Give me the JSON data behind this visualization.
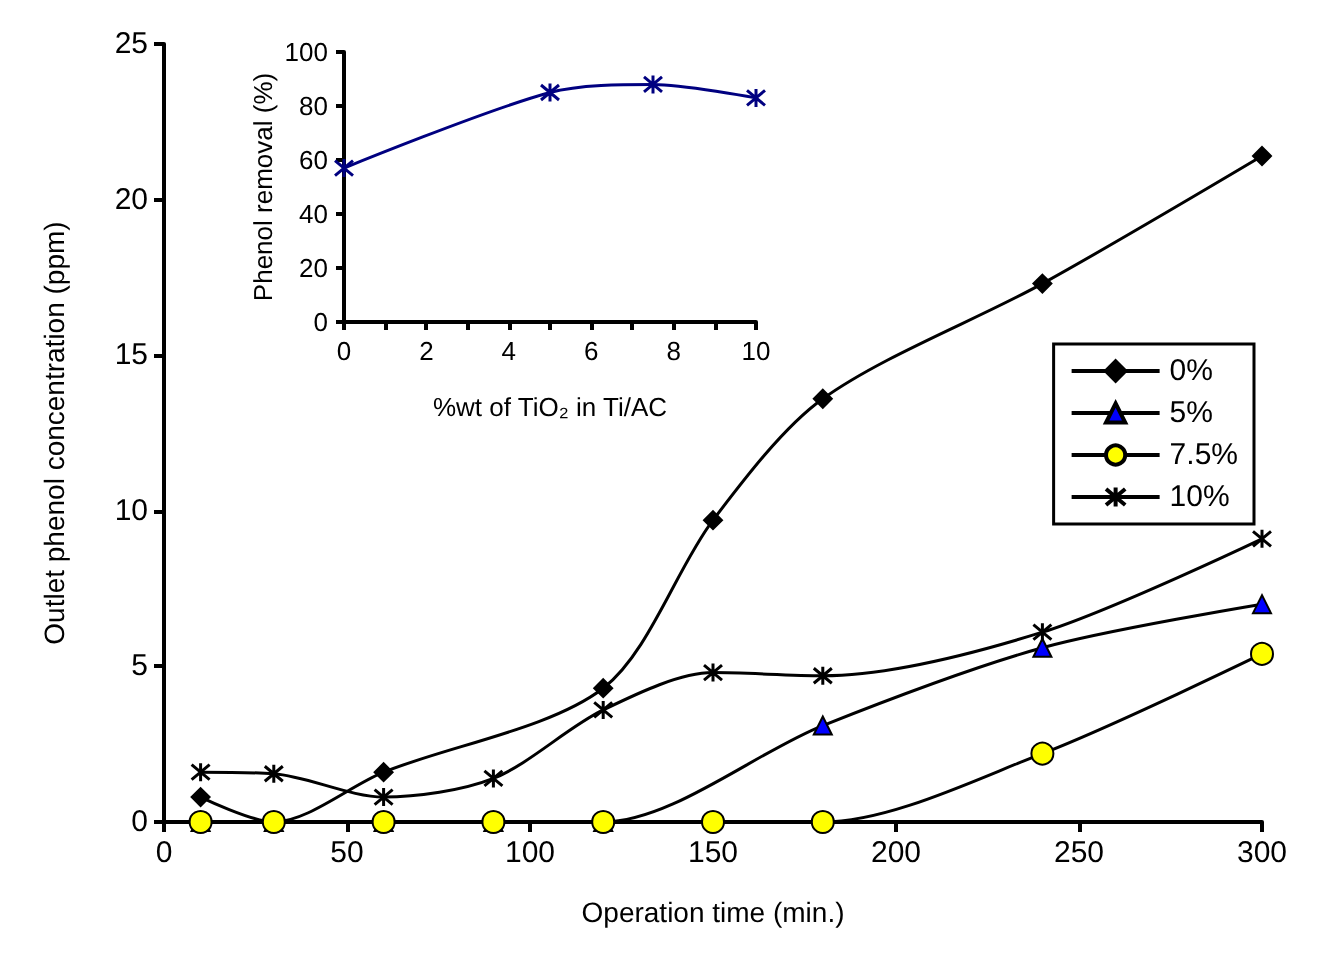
{
  "chart_data": [
    {
      "type": "line",
      "xlabel": "Operation time (min.)",
      "ylabel": "Outlet phenol concentration (ppm)",
      "xlim": [
        0,
        300
      ],
      "xticks": [
        0,
        50,
        100,
        150,
        200,
        250,
        300
      ],
      "ylim": [
        0,
        25
      ],
      "yticks": [
        0,
        5,
        10,
        15,
        20,
        25
      ],
      "grid": false,
      "legend": "right",
      "line_style": "solid",
      "series": [
        {
          "name": "0%",
          "color": "#000000",
          "marker": "diamond",
          "x": [
            10,
            30,
            60,
            120,
            150,
            180,
            240,
            300
          ],
          "values": [
            0.8,
            0,
            1.6,
            4.3,
            9.7,
            13.6,
            17.3,
            21.4
          ]
        },
        {
          "name": "5%",
          "color": "#0000ff",
          "marker": "triangle",
          "x": [
            10,
            30,
            60,
            90,
            120,
            180,
            240,
            300
          ],
          "values": [
            0,
            0,
            0,
            0,
            0,
            3.1,
            5.6,
            7.0
          ]
        },
        {
          "name": "7.5%",
          "color": "#ffff00",
          "marker": "circle",
          "x": [
            10,
            30,
            60,
            90,
            120,
            150,
            180,
            240,
            300
          ],
          "values": [
            0,
            0,
            0,
            0,
            0,
            0,
            0,
            2.2,
            5.4
          ]
        },
        {
          "name": "10%",
          "color": "#000000",
          "marker": "cross",
          "x": [
            10,
            30,
            60,
            90,
            120,
            150,
            180,
            240,
            300
          ],
          "values": [
            1.6,
            1.55,
            0.8,
            1.4,
            3.6,
            4.8,
            4.7,
            6.1,
            9.1
          ]
        }
      ]
    },
    {
      "type": "line",
      "xlabel": "%wt of TiO₂ in Ti/AC",
      "ylabel": "Phenol removal (%)",
      "xlim": [
        0,
        10
      ],
      "xticks": [
        0,
        {
          "value": 1,
          "label": null
        },
        2,
        {
          "value": 3,
          "label": null
        },
        4,
        {
          "value": 5,
          "label": null
        },
        6,
        {
          "value": 7,
          "label": null
        },
        8,
        {
          "value": 9,
          "label": null
        },
        10
      ],
      "ylim": [
        0,
        100
      ],
      "yticks": [
        0,
        20,
        40,
        60,
        80,
        100
      ],
      "grid": false,
      "legend": false,
      "marker": "cross",
      "line_style": "solid",
      "series": [
        {
          "color": "#000080",
          "x": [
            0,
            5,
            7.5,
            10
          ],
          "values": [
            57,
            85,
            88,
            83
          ]
        }
      ]
    }
  ]
}
